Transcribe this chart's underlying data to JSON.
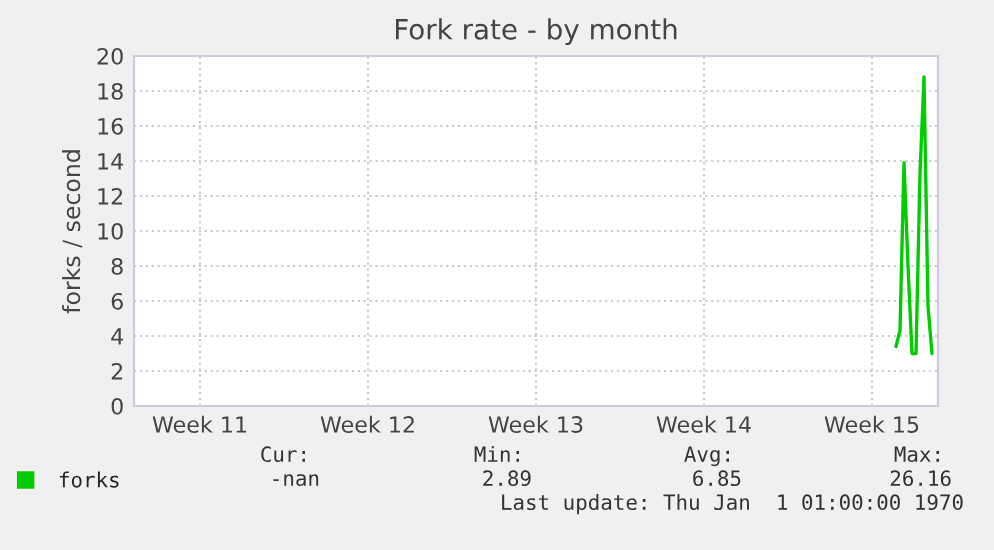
{
  "chart_data": {
    "type": "line",
    "title": "Fork rate - by month",
    "ylabel": "forks / second",
    "categories": [
      null,
      null,
      null,
      null,
      null,
      null,
      null,
      null,
      null,
      null,
      null,
      null,
      null,
      null,
      null,
      null,
      "Week 11",
      null,
      null,
      null,
      null,
      null,
      null,
      null,
      null,
      null,
      null,
      null,
      null,
      null,
      null,
      null,
      null,
      null,
      null,
      null,
      null,
      null,
      null,
      null,
      null,
      null,
      null,
      null,
      null,
      null,
      null,
      null,
      null,
      null,
      null,
      null,
      null,
      null,
      null,
      null,
      null,
      null,
      "Week 12",
      null,
      null,
      null,
      null,
      null,
      null,
      null,
      null,
      null,
      null,
      null,
      null,
      null,
      null,
      null,
      null,
      null,
      null,
      null,
      null,
      null,
      null,
      null,
      null,
      null,
      null,
      null,
      null,
      null,
      null,
      null,
      null,
      null,
      null,
      null,
      null,
      null,
      null,
      null,
      null,
      null,
      "Week 13",
      null,
      null,
      null,
      null,
      null,
      null,
      null,
      null,
      null,
      null,
      null,
      null,
      null,
      null,
      null,
      null,
      null,
      null,
      null,
      null,
      null,
      null,
      null,
      null,
      null,
      null,
      null,
      null,
      null,
      null,
      null,
      null,
      null,
      null,
      null,
      null,
      null,
      null,
      null,
      null,
      null,
      "Week 14",
      null,
      null,
      null,
      null,
      null,
      null,
      null,
      null,
      null,
      null,
      null,
      null,
      null,
      null,
      null,
      null,
      null,
      null,
      null,
      null,
      null,
      null,
      null,
      null,
      null,
      null,
      null,
      null,
      null,
      null,
      null,
      null,
      null,
      null,
      null,
      null,
      null,
      null,
      null,
      null,
      null,
      "Week 15",
      null,
      null,
      null,
      null,
      null,
      null,
      null,
      null,
      null,
      null,
      null,
      null,
      null,
      null,
      null,
      null
    ],
    "series": [
      {
        "name": "forks",
        "color": "#00cc00",
        "values": [
          null,
          null,
          null,
          null,
          null,
          null,
          null,
          null,
          null,
          null,
          null,
          null,
          null,
          null,
          null,
          null,
          null,
          null,
          null,
          null,
          null,
          null,
          null,
          null,
          null,
          null,
          null,
          null,
          null,
          null,
          null,
          null,
          null,
          null,
          null,
          null,
          null,
          null,
          null,
          null,
          null,
          null,
          null,
          null,
          null,
          null,
          null,
          null,
          null,
          null,
          null,
          null,
          null,
          null,
          null,
          null,
          null,
          null,
          null,
          null,
          null,
          null,
          null,
          null,
          null,
          null,
          null,
          null,
          null,
          null,
          null,
          null,
          null,
          null,
          null,
          null,
          null,
          null,
          null,
          null,
          null,
          null,
          null,
          null,
          null,
          null,
          null,
          null,
          null,
          null,
          null,
          null,
          null,
          null,
          null,
          null,
          null,
          null,
          null,
          null,
          null,
          null,
          null,
          null,
          null,
          null,
          null,
          null,
          null,
          null,
          null,
          null,
          null,
          null,
          null,
          null,
          null,
          null,
          null,
          null,
          null,
          null,
          null,
          null,
          null,
          null,
          null,
          null,
          null,
          null,
          null,
          null,
          null,
          null,
          null,
          null,
          null,
          null,
          null,
          null,
          null,
          null,
          null,
          null,
          null,
          null,
          null,
          null,
          null,
          null,
          null,
          null,
          null,
          null,
          null,
          null,
          null,
          null,
          null,
          null,
          null,
          null,
          null,
          null,
          null,
          null,
          null,
          null,
          null,
          null,
          null,
          null,
          null,
          null,
          null,
          null,
          null,
          null,
          null,
          null,
          null,
          null,
          null,
          null,
          null,
          null,
          null,
          null,
          null,
          null,
          3.4,
          4.3,
          13.9,
          8.0,
          3.0,
          3.0,
          13.3,
          18.8,
          5.7,
          3.0,
          null
        ]
      }
    ],
    "ylim": [
      0,
      20
    ],
    "yticks": [
      0,
      2,
      4,
      6,
      8,
      10,
      12,
      14,
      16,
      18,
      20
    ],
    "grid": true,
    "legend": "bottom left",
    "marker": "none",
    "line_style": "solid",
    "annotations": [
      "Cur:",
      "Min:",
      "Avg:",
      "Max:",
      "-nan",
      "2.89",
      "6.85",
      "26.16",
      "Last update: Thu Jan  1 01:00:00 1970"
    ]
  }
}
